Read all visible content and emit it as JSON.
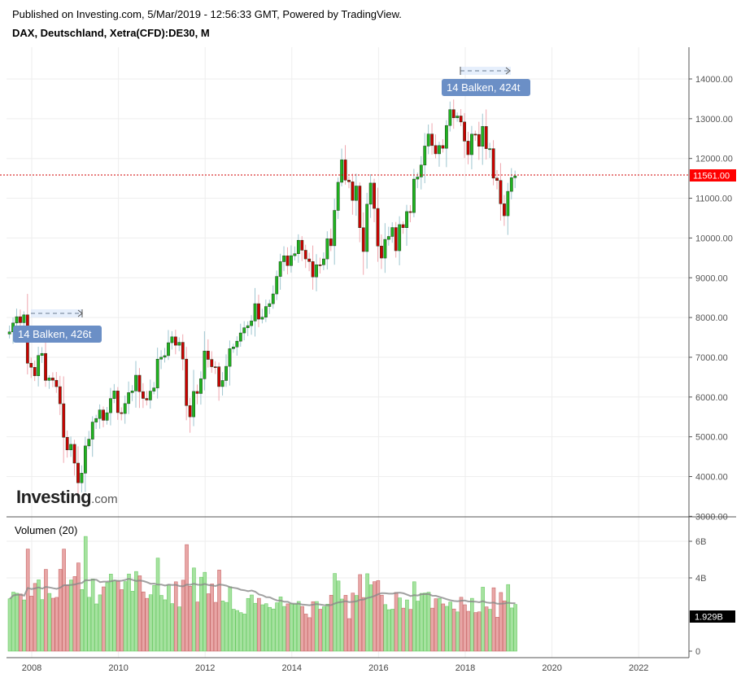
{
  "header": {
    "published": "Published on Investing.com, 5/Mar/2019 - 12:56:33 GMT, Powered by TradingView.",
    "symbol": "DAX, Deutschland, Xetra(CFD):DE30, M"
  },
  "logo": {
    "main": "Investing",
    "suffix": ".com"
  },
  "volume_pane": {
    "label": "Volumen (20)"
  },
  "colors": {
    "up": "#1fb41f",
    "down": "#cc0000",
    "up_volume": "#a6e2a0",
    "down_volume": "#e8a6a6",
    "last_price": "#ff0000",
    "badge": "#6b8fc6"
  },
  "measure_tags": [
    {
      "label": "14 Balken, 426t"
    },
    {
      "label": "14 Balken, 424t"
    }
  ],
  "chart_data": {
    "type": "candlestick",
    "title": "DAX, Deutschland, Xetra(CFD):DE30, M",
    "interval": "M",
    "last_price": "11561.00",
    "last_volume": "1.929B",
    "price_axis": {
      "ticks": [
        "14000.00",
        "13000.00",
        "12000.00",
        "11000.00",
        "10000.00",
        "9000.00",
        "8000.00",
        "7000.00",
        "6000.00",
        "5000.00",
        "4000.00",
        "3000.00"
      ],
      "range": [
        3000,
        14600
      ]
    },
    "volume_axis": {
      "ticks": [
        "6B",
        "4B",
        "0"
      ],
      "range": [
        0,
        6.6
      ]
    },
    "x_axis": {
      "ticks": [
        "2008",
        "2010",
        "2012",
        "2014",
        "2016",
        "2018",
        "2020",
        "2022"
      ]
    },
    "start": "2007-07",
    "closes": [
      7585,
      7638,
      7862,
      8020,
      7870,
      8067,
      6851,
      6748,
      6535,
      7045,
      7097,
      6418,
      6480,
      6422,
      6261,
      5831,
      4988,
      4670,
      4810,
      4338,
      3843,
      4085,
      4770,
      4940,
      5370,
      5460,
      5675,
      5415,
      5605,
      5962,
      6153,
      5608,
      5586,
      5835,
      6111,
      6154,
      6548,
      6136,
      5965,
      5925,
      6148,
      6229,
      6953,
      7001,
      7041,
      7366,
      7514,
      7303,
      7376,
      6954,
      5785,
      5502,
      6141,
      6089,
      6459,
      7157,
      6946,
      6762,
      6761,
      6264,
      6416,
      6772,
      7216,
      7260,
      7405,
      7612,
      7742,
      7795,
      7913,
      8348,
      7959,
      8009,
      8276,
      8348,
      8594,
      9033,
      9405,
      9552,
      9306,
      9555,
      9604,
      9943,
      9692,
      9474,
      9407,
      9021,
      9327,
      9326,
      9474,
      9980,
      9805,
      10694,
      11401,
      11966,
      11454,
      11413,
      10945,
      11308,
      10259,
      9660,
      10850,
      11382,
      10743,
      9798,
      9495,
      9965,
      10039,
      10263,
      9680,
      10337,
      10259,
      10665,
      10640,
      11481,
      11535,
      11834,
      12312,
      12615,
      12325,
      12118,
      12325,
      12256,
      12829,
      13229,
      13023,
      13069,
      12918,
      12436,
      12096,
      12612,
      12605,
      12306,
      12806,
      12246,
      12247,
      11506,
      11447,
      10861,
      10559,
      11173,
      11516,
      11561
    ]
  }
}
